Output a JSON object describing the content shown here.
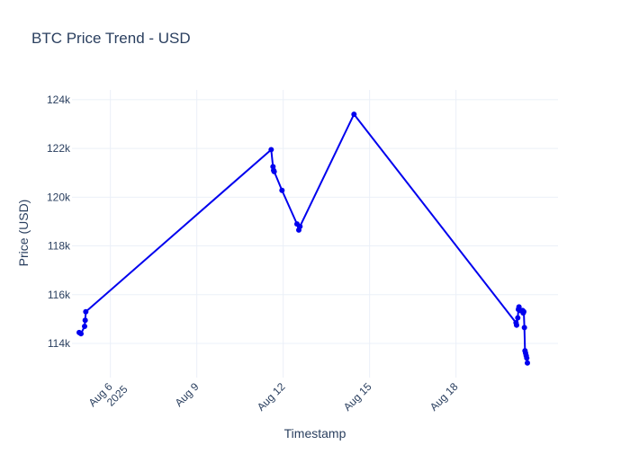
{
  "chart_data": {
    "type": "line",
    "title": "BTC Price Trend - USD",
    "xlabel": "Timestamp",
    "ylabel": "Price (USD)",
    "grid": true,
    "legend": "none",
    "colors": {
      "line": "#0000ee",
      "grid": "#ebf0f8",
      "tick_text": "#2a3f5f"
    },
    "xlim": [
      "2025-08-04T16:00",
      "2025-08-21T13:00"
    ],
    "ylim": [
      112600,
      124400
    ],
    "x_ticks": [
      {
        "x": "2025-08-06",
        "label": "Aug 6",
        "sublabel": "2025"
      },
      {
        "x": "2025-08-09",
        "label": "Aug 9",
        "sublabel": ""
      },
      {
        "x": "2025-08-12",
        "label": "Aug 12",
        "sublabel": ""
      },
      {
        "x": "2025-08-15",
        "label": "Aug 15",
        "sublabel": ""
      },
      {
        "x": "2025-08-18",
        "label": "Aug 18",
        "sublabel": ""
      }
    ],
    "y_ticks": [
      {
        "y": 114000,
        "label": "114k"
      },
      {
        "y": 116000,
        "label": "116k"
      },
      {
        "y": 118000,
        "label": "118k"
      },
      {
        "y": 120000,
        "label": "120k"
      },
      {
        "y": 122000,
        "label": "122k"
      },
      {
        "y": 124000,
        "label": "124k"
      }
    ],
    "series": [
      {
        "color": "#0000ee",
        "x": [
          "2025-08-04T22:00",
          "2025-08-04T23:30",
          "2025-08-05T02:30",
          "2025-08-05T03:00",
          "2025-08-05T03:30",
          "2025-08-11T14:00",
          "2025-08-11T15:30",
          "2025-08-11T16:00",
          "2025-08-11T16:30",
          "2025-08-11T23:00",
          "2025-08-12T11:30",
          "2025-08-12T13:00",
          "2025-08-12T14:00",
          "2025-08-14T11:00",
          "2025-08-20T02:00",
          "2025-08-20T02:30",
          "2025-08-20T03:30",
          "2025-08-20T04:00",
          "2025-08-20T04:30",
          "2025-08-20T05:30",
          "2025-08-20T07:30",
          "2025-08-20T08:00",
          "2025-08-20T08:30",
          "2025-08-20T09:00",
          "2025-08-20T09:30",
          "2025-08-20T10:00",
          "2025-08-20T10:30",
          "2025-08-20T11:00",
          "2025-08-20T11:30"
        ],
        "y": [
          114450,
          114400,
          114700,
          114950,
          115300,
          121950,
          121250,
          121100,
          121050,
          120280,
          118900,
          118650,
          118800,
          123400,
          114850,
          114750,
          115050,
          115400,
          115500,
          115350,
          115350,
          115250,
          115300,
          114650,
          113700,
          113600,
          113500,
          113400,
          113200
        ]
      }
    ]
  }
}
